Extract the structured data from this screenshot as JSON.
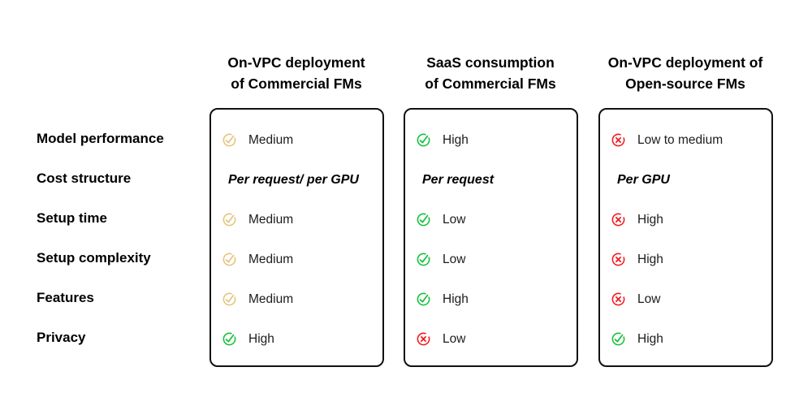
{
  "colors": {
    "gold": "#E4C57C",
    "green": "#16C13C",
    "red": "#F31A1F",
    "card_border": "#111111",
    "value_text": "#1C1C1C",
    "label_text": "#000000",
    "background": "#FFFFFF"
  },
  "row_labels": [
    "Model performance",
    "Cost structure",
    "Setup time",
    "Setup complexity",
    "Features",
    "Privacy"
  ],
  "columns": [
    {
      "header_line1": "On-VPC deployment",
      "header_line2": "of Commercial FMs",
      "cells": [
        {
          "icon": "check-circle",
          "status": "gold",
          "text": "Medium"
        },
        {
          "icon": null,
          "status": null,
          "text": "Per request/ per GPU",
          "emphasis": true
        },
        {
          "icon": "check-circle",
          "status": "gold",
          "text": "Medium"
        },
        {
          "icon": "check-circle",
          "status": "gold",
          "text": "Medium"
        },
        {
          "icon": "check-circle",
          "status": "gold",
          "text": "Medium"
        },
        {
          "icon": "check-circle",
          "status": "green",
          "text": "High"
        }
      ]
    },
    {
      "header_line1": "SaaS consumption",
      "header_line2": "of Commercial FMs",
      "cells": [
        {
          "icon": "check-circle",
          "status": "green",
          "text": "High"
        },
        {
          "icon": null,
          "status": null,
          "text": "Per request",
          "emphasis": true
        },
        {
          "icon": "check-circle",
          "status": "green",
          "text": "Low"
        },
        {
          "icon": "check-circle",
          "status": "green",
          "text": "Low"
        },
        {
          "icon": "check-circle",
          "status": "green",
          "text": "High"
        },
        {
          "icon": "x-circle",
          "status": "red",
          "text": "Low"
        }
      ]
    },
    {
      "header_line1": "On-VPC deployment of",
      "header_line2": "Open-source FMs",
      "cells": [
        {
          "icon": "x-circle",
          "status": "red",
          "text": "Low to medium"
        },
        {
          "icon": null,
          "status": null,
          "text": "Per GPU",
          "emphasis": true
        },
        {
          "icon": "x-circle",
          "status": "red",
          "text": "High"
        },
        {
          "icon": "x-circle",
          "status": "red",
          "text": "High"
        },
        {
          "icon": "x-circle",
          "status": "red",
          "text": "Low"
        },
        {
          "icon": "check-circle",
          "status": "green",
          "text": "High"
        }
      ]
    }
  ]
}
